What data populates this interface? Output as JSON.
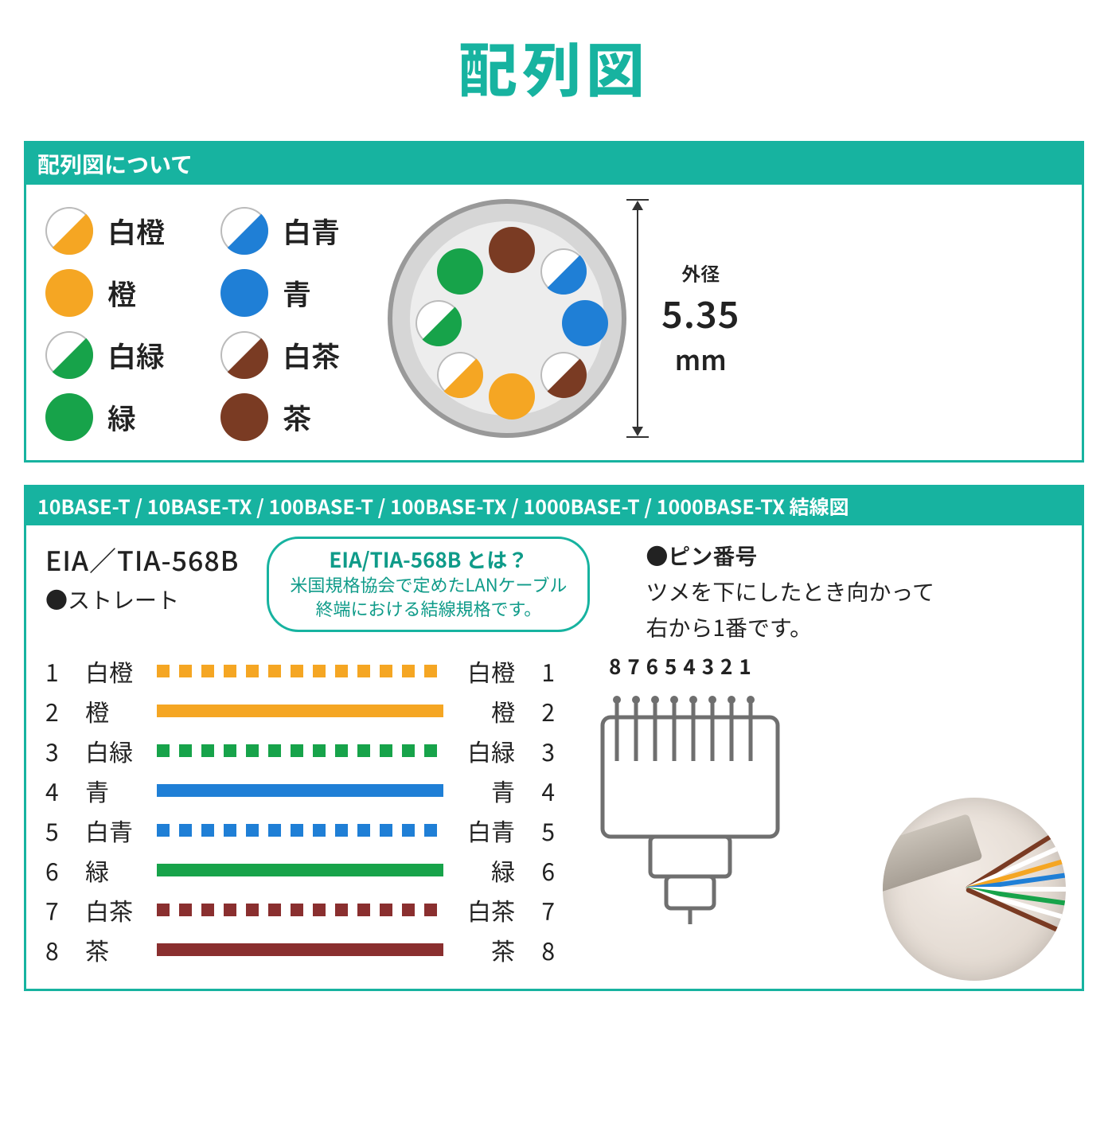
{
  "theme": {
    "accent": "#17b3a0",
    "accent_dark": "#0f9b89",
    "text": "#222222",
    "border_gray": "#8f8f8f"
  },
  "title": "配列図",
  "legend_panel": {
    "header": "配列図について",
    "columns": [
      [
        {
          "label": "白橙",
          "style": "half",
          "color": "#f5a623"
        },
        {
          "label": "橙",
          "style": "solid",
          "color": "#f5a623"
        },
        {
          "label": "白緑",
          "style": "half",
          "color": "#17a34a"
        },
        {
          "label": "緑",
          "style": "solid",
          "color": "#17a34a"
        }
      ],
      [
        {
          "label": "白青",
          "style": "half",
          "color": "#1f7fd6"
        },
        {
          "label": "青",
          "style": "solid",
          "color": "#1f7fd6"
        },
        {
          "label": "白茶",
          "style": "half",
          "color": "#7a3b23"
        },
        {
          "label": "茶",
          "style": "solid",
          "color": "#7a3b23"
        }
      ]
    ],
    "cross_section": {
      "outer_bg": "#d6d6d6",
      "outer_border": "#9a9a9a",
      "inner_bg": "#ededed",
      "wires": [
        {
          "angle": -90,
          "style": "solid",
          "color": "#7a3b23"
        },
        {
          "angle": -45,
          "style": "half",
          "color": "#1f7fd6"
        },
        {
          "angle": 0,
          "style": "solid",
          "color": "#1f7fd6"
        },
        {
          "angle": 45,
          "style": "half",
          "color": "#7a3b23"
        },
        {
          "angle": 90,
          "style": "solid",
          "color": "#f5a623"
        },
        {
          "angle": 135,
          "style": "half",
          "color": "#f5a623"
        },
        {
          "angle": 180,
          "style": "half",
          "color": "#17a34a"
        },
        {
          "angle": 225,
          "style": "solid",
          "color": "#17a34a"
        }
      ],
      "dimension": {
        "label": "外径",
        "value": "5.35",
        "unit": "mm"
      }
    }
  },
  "wiring_panel": {
    "header": "10BASE-T / 10BASE-TX / 100BASE-T / 100BASE-TX / 1000BASE-T / 1000BASE-TX 結線図",
    "standard": "EIA／TIA-568B",
    "subtitle": "●ストレート",
    "info_bubble": {
      "title": "EIA/TIA-568B とは？",
      "line1": "米国規格協会で定めたLANケーブル",
      "line2": "終端における結線規格です。"
    },
    "pin_section": {
      "title": "●ピン番号",
      "desc1": "ツメを下にしたとき向かって",
      "desc2": "右から1番です。",
      "digits": "87654321"
    },
    "pins": [
      {
        "n": 1,
        "name": "白橙",
        "color": "#f5a623",
        "dashed": true
      },
      {
        "n": 2,
        "name": "橙",
        "color": "#f5a623",
        "dashed": false
      },
      {
        "n": 3,
        "name": "白緑",
        "color": "#17a34a",
        "dashed": true
      },
      {
        "n": 4,
        "name": "青",
        "color": "#1f7fd6",
        "dashed": false
      },
      {
        "n": 5,
        "name": "白青",
        "color": "#1f7fd6",
        "dashed": true
      },
      {
        "n": 6,
        "name": "緑",
        "color": "#17a34a",
        "dashed": false
      },
      {
        "n": 7,
        "name": "白茶",
        "color": "#8a2f2f",
        "dashed": true
      },
      {
        "n": 8,
        "name": "茶",
        "color": "#8a2f2f",
        "dashed": false
      }
    ],
    "rj45": {
      "stroke": "#6f6f6f",
      "fill": "#ffffff"
    },
    "photo_wires": [
      {
        "color": "#7a3b23",
        "rot": -32
      },
      {
        "color": "#ffffff",
        "rot": -24
      },
      {
        "color": "#f5a623",
        "rot": -16
      },
      {
        "color": "#1f7fd6",
        "rot": -8
      },
      {
        "color": "#ffffff",
        "rot": 0
      },
      {
        "color": "#17a34a",
        "rot": 8
      },
      {
        "color": "#ffffff",
        "rot": 16
      },
      {
        "color": "#7a3b23",
        "rot": 24
      }
    ]
  }
}
